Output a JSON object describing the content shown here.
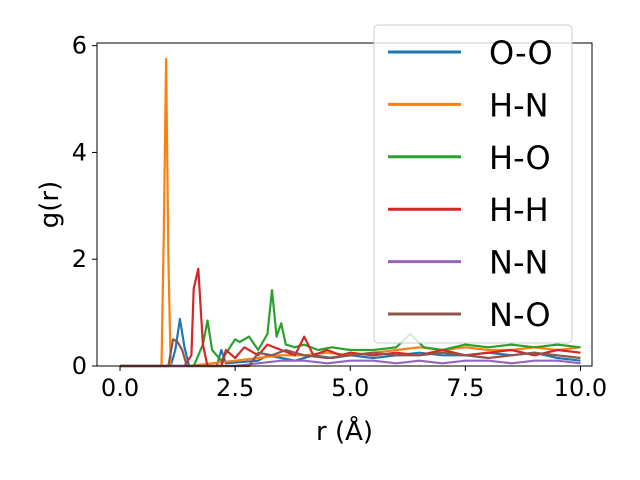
{
  "chart_data": {
    "type": "line",
    "title": "",
    "xlabel": "r (Å)",
    "ylabel": "g(r)",
    "xlim": [
      -0.5,
      10.25
    ],
    "ylim": [
      0,
      6.05
    ],
    "xticks": [
      0.0,
      2.5,
      5.0,
      7.5,
      10.0
    ],
    "xtick_labels": [
      "0.0",
      "2.5",
      "5.0",
      "7.5",
      "10.0"
    ],
    "yticks": [
      0,
      2,
      4,
      6
    ],
    "ytick_labels": [
      "0",
      "2",
      "4",
      "6"
    ],
    "grid": false,
    "legend_position": "top-right",
    "series": [
      {
        "name": "O-O",
        "color": "#1f77b4",
        "x": [
          0.0,
          1.1,
          1.2,
          1.3,
          1.4,
          1.5,
          2.1,
          2.2,
          2.3,
          3.0,
          3.2,
          3.5,
          3.8,
          4.2,
          4.6,
          5.0,
          5.5,
          6.0,
          6.5,
          7.0,
          7.5,
          8.0,
          8.5,
          9.0,
          9.5,
          10.0
        ],
        "y": [
          0.0,
          0.0,
          0.3,
          0.88,
          0.35,
          0.0,
          0.0,
          0.3,
          0.05,
          0.1,
          0.2,
          0.15,
          0.1,
          0.2,
          0.15,
          0.2,
          0.15,
          0.2,
          0.25,
          0.2,
          0.2,
          0.25,
          0.2,
          0.25,
          0.15,
          0.1
        ]
      },
      {
        "name": "H-N",
        "color": "#ff7f0e",
        "x": [
          0.0,
          0.9,
          0.95,
          1.0,
          1.05,
          1.1,
          1.2,
          1.5,
          2.5,
          3.0,
          3.5,
          4.0,
          4.5,
          5.0,
          5.5,
          6.0,
          6.5,
          7.0,
          7.5,
          8.0,
          8.5,
          9.0,
          9.5,
          10.0
        ],
        "y": [
          0.0,
          0.0,
          2.5,
          5.75,
          2.0,
          0.0,
          0.0,
          0.0,
          0.1,
          0.15,
          0.2,
          0.2,
          0.25,
          0.2,
          0.25,
          0.3,
          0.35,
          0.3,
          0.35,
          0.3,
          0.3,
          0.35,
          0.3,
          0.35
        ]
      },
      {
        "name": "H-O",
        "color": "#2ca02c",
        "x": [
          0.0,
          1.6,
          1.8,
          1.9,
          2.0,
          2.2,
          2.5,
          2.6,
          2.8,
          3.0,
          3.2,
          3.3,
          3.4,
          3.5,
          3.6,
          3.8,
          4.0,
          4.3,
          4.6,
          5.0,
          5.5,
          6.0,
          6.3,
          6.6,
          7.0,
          7.5,
          8.0,
          8.5,
          9.0,
          9.5,
          10.0
        ],
        "y": [
          0.0,
          0.0,
          0.4,
          0.85,
          0.3,
          0.1,
          0.5,
          0.45,
          0.55,
          0.3,
          0.6,
          1.42,
          0.55,
          0.8,
          0.4,
          0.35,
          0.4,
          0.3,
          0.35,
          0.3,
          0.3,
          0.35,
          0.6,
          0.35,
          0.3,
          0.4,
          0.35,
          0.4,
          0.35,
          0.4,
          0.35
        ]
      },
      {
        "name": "H-H",
        "color": "#d62728",
        "x": [
          0.0,
          1.4,
          1.55,
          1.6,
          1.7,
          1.8,
          1.9,
          2.2,
          2.3,
          2.5,
          2.7,
          3.0,
          3.2,
          3.5,
          3.8,
          4.0,
          4.2,
          4.5,
          4.8,
          5.0,
          5.5,
          6.0,
          6.5,
          7.0,
          7.5,
          8.0,
          8.5,
          9.0,
          9.5,
          10.0
        ],
        "y": [
          0.0,
          0.0,
          0.2,
          1.45,
          1.82,
          0.4,
          0.0,
          0.0,
          0.3,
          0.15,
          0.35,
          0.2,
          0.4,
          0.3,
          0.2,
          0.55,
          0.2,
          0.3,
          0.2,
          0.25,
          0.2,
          0.25,
          0.2,
          0.3,
          0.2,
          0.25,
          0.3,
          0.2,
          0.3,
          0.25
        ]
      },
      {
        "name": "N-N",
        "color": "#9467bd",
        "x": [
          0.0,
          2.5,
          3.0,
          3.5,
          4.0,
          4.5,
          5.0,
          5.5,
          6.0,
          6.5,
          7.0,
          7.5,
          8.0,
          8.5,
          9.0,
          9.5,
          10.0
        ],
        "y": [
          0.0,
          0.0,
          0.05,
          0.1,
          0.1,
          0.05,
          0.1,
          0.1,
          0.05,
          0.1,
          0.05,
          0.1,
          0.1,
          0.05,
          0.1,
          0.1,
          0.05
        ]
      },
      {
        "name": "N-O",
        "color": "#8c564b",
        "x": [
          0.0,
          1.05,
          1.15,
          1.25,
          1.35,
          1.45,
          2.8,
          3.0,
          3.3,
          3.6,
          4.0,
          4.5,
          5.0,
          5.5,
          6.0,
          6.5,
          7.0,
          7.5,
          8.0,
          8.5,
          9.0,
          9.5,
          10.0
        ],
        "y": [
          0.0,
          0.0,
          0.5,
          0.45,
          0.3,
          0.0,
          0.0,
          0.25,
          0.2,
          0.3,
          0.2,
          0.15,
          0.2,
          0.25,
          0.2,
          0.2,
          0.25,
          0.2,
          0.15,
          0.2,
          0.25,
          0.2,
          0.15
        ]
      }
    ]
  }
}
